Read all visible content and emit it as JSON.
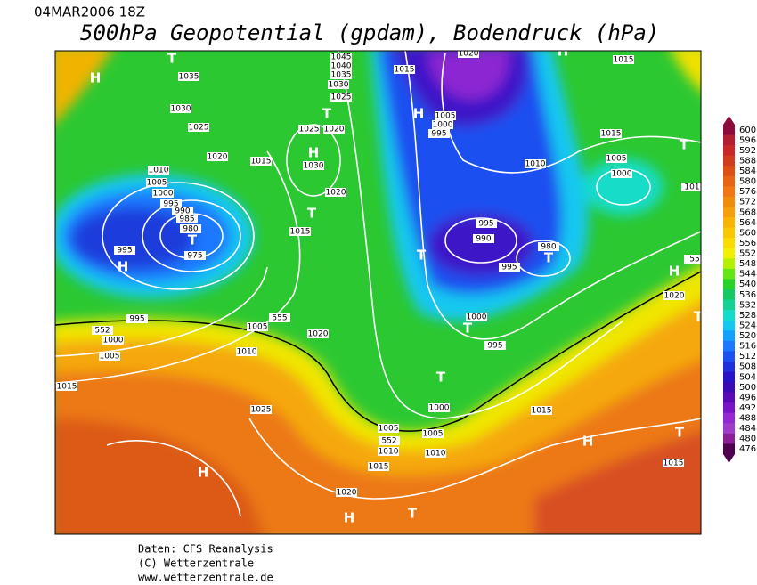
{
  "header": {
    "datetime": "04MAR2006 18Z",
    "title": "500hPa Geopotential (gpdam), Bodendruck (hPa)"
  },
  "colorbar": {
    "labels": [
      600,
      596,
      592,
      588,
      584,
      580,
      576,
      572,
      568,
      564,
      560,
      556,
      552,
      548,
      544,
      540,
      536,
      532,
      528,
      524,
      520,
      516,
      512,
      508,
      504,
      500,
      496,
      492,
      488,
      484,
      480,
      476
    ],
    "colors": [
      "#8c0a3c",
      "#b41e32",
      "#c82828",
      "#d23c1e",
      "#dc5014",
      "#e66414",
      "#f07814",
      "#f08c0a",
      "#f5a00a",
      "#f8b400",
      "#fac800",
      "#fadc00",
      "#f0f000",
      "#b4f000",
      "#64e614",
      "#28d228",
      "#14c864",
      "#14d296",
      "#14dcc8",
      "#14c8f0",
      "#14a0ff",
      "#1e78ff",
      "#1e50f0",
      "#1e32dc",
      "#2814c8",
      "#3c0ab4",
      "#5a0ab4",
      "#7814c8",
      "#9628d2",
      "#a03cc8",
      "#8c1e96",
      "#500050"
    ]
  },
  "map": {
    "pressure_labels": [
      "1045",
      "1040",
      "1035",
      "1030",
      "1025",
      "1015",
      "1035",
      "1030",
      "1025",
      "1020",
      "1015",
      "1025",
      "1020",
      "1030",
      "1020",
      "1010",
      "1005",
      "1000",
      "995",
      "990",
      "985",
      "980",
      "975",
      "995",
      "1015",
      "1005",
      "1000",
      "995",
      "1010",
      "1015",
      "1005",
      "1000",
      "995",
      "990",
      "980",
      "995",
      "1000",
      "995",
      "1020",
      "1020",
      "1005",
      "1010",
      "995",
      "552",
      "1000",
      "1005",
      "1015",
      "1025",
      "1015",
      "1000",
      "1005",
      "552",
      "1005",
      "1010",
      "1010",
      "1015",
      "1020",
      "1015",
      "555",
      "1015",
      "1020",
      "101",
      "55"
    ],
    "centers": [
      "T",
      "H",
      "T",
      "H",
      "T",
      "T",
      "H",
      "H",
      "T",
      "T",
      "T",
      "T",
      "H",
      "T",
      "H",
      "H",
      "T",
      "H",
      "T",
      "H",
      "T"
    ]
  },
  "footer": {
    "lines": [
      "Daten: CFS Reanalysis",
      "(C) Wetterzentrale",
      "www.wetterzentrale.de"
    ]
  }
}
